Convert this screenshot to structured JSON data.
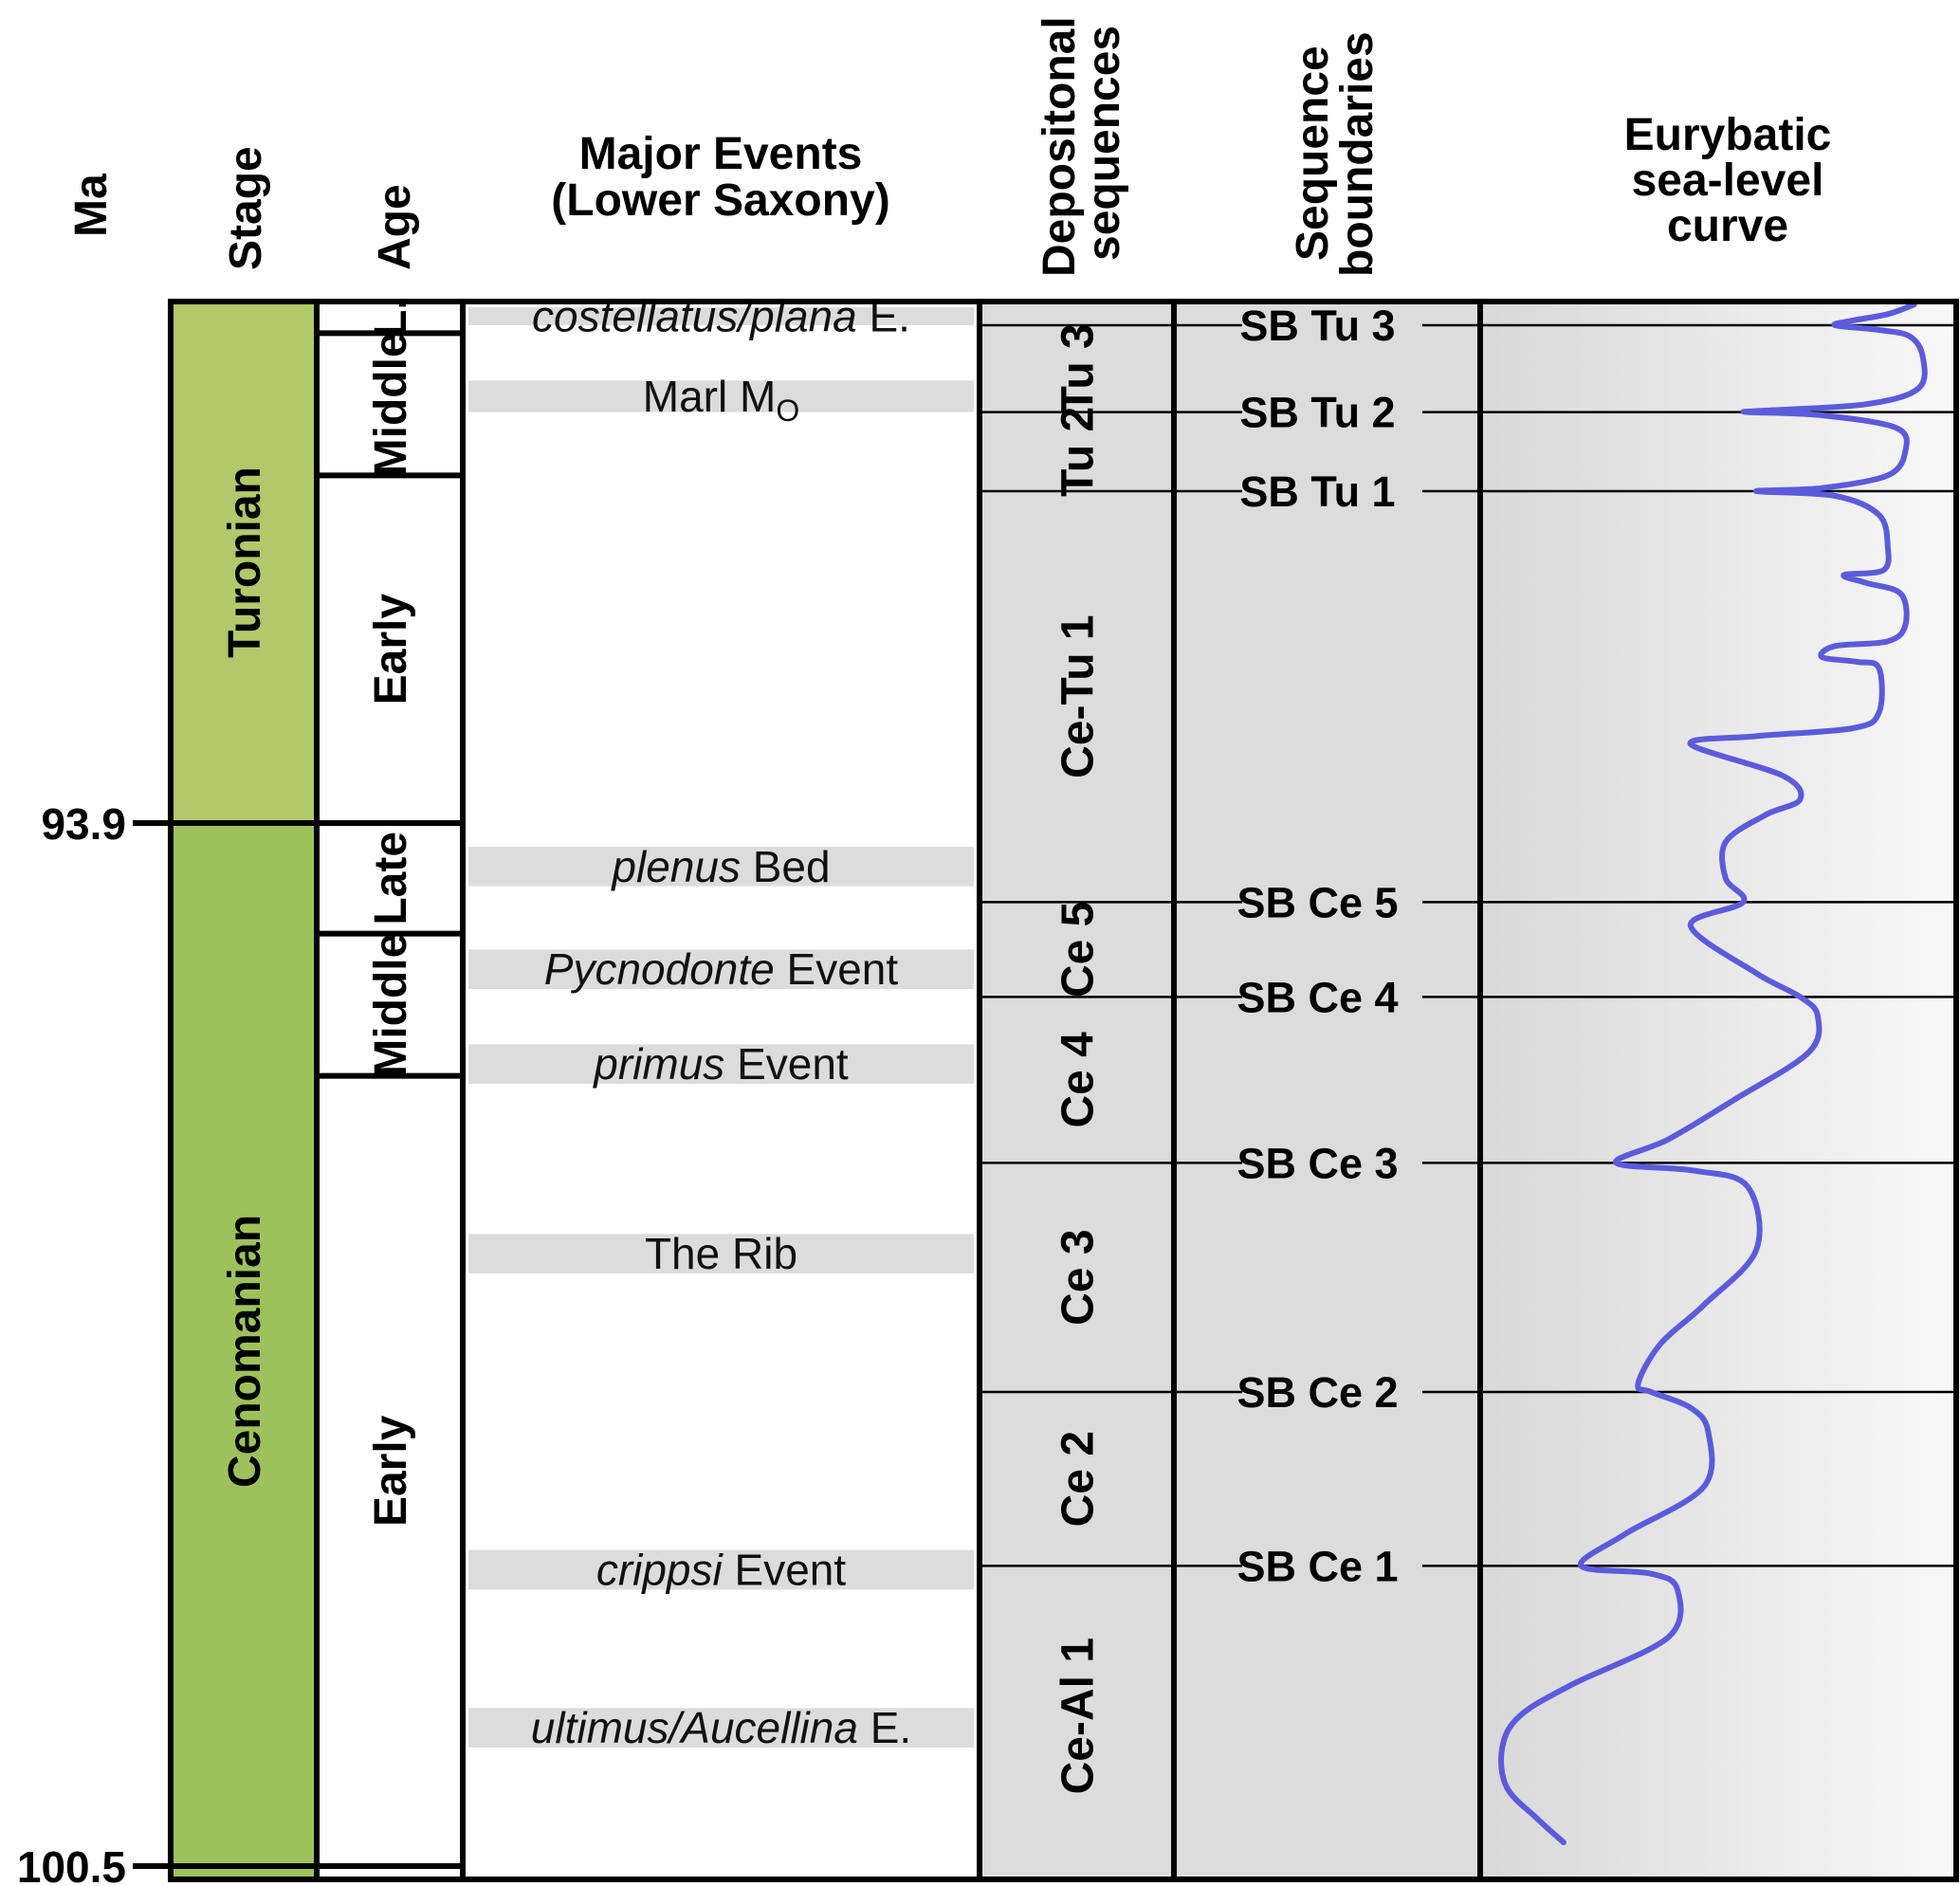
{
  "headers": {
    "ma": "Ma",
    "stage": "Stage",
    "age": "Age",
    "events_line1": "Major Events",
    "events_line2": "(Lower Saxony)",
    "depo_line1": "Depositonal",
    "depo_line2": "sequences",
    "sb_line1": "Sequence",
    "sb_line2": "boundaries",
    "curve_line1": "Eurybatic",
    "curve_line2": "sea-level",
    "curve_line3": "curve"
  },
  "ma_ticks": [
    {
      "label": "93.9",
      "value": 93.9
    },
    {
      "label": "100.5",
      "value": 100.5
    }
  ],
  "stages": [
    {
      "label": "Turonian",
      "top_ma": 90.6,
      "bottom_ma": 93.9,
      "color": "#b0c96a"
    },
    {
      "label": "Cenomanian",
      "top_ma": 93.9,
      "bottom_ma": 100.5,
      "color": "#9dc25c"
    }
  ],
  "ages": [
    {
      "label": "L.",
      "top_ma": 90.6,
      "bottom_ma": 90.8
    },
    {
      "label": "Middle",
      "top_ma": 90.8,
      "bottom_ma": 91.7
    },
    {
      "label": "Early",
      "top_ma": 91.7,
      "bottom_ma": 93.9
    },
    {
      "label": "Late",
      "top_ma": 93.9,
      "bottom_ma": 94.6
    },
    {
      "label": "Middle",
      "top_ma": 94.6,
      "bottom_ma": 95.5
    },
    {
      "label": "Early",
      "top_ma": 95.5,
      "bottom_ma": 100.5
    }
  ],
  "events": [
    {
      "italic": "costellatus/plana",
      "plain": " E.",
      "top_ma": 90.6,
      "bottom_ma": 90.75
    },
    {
      "italic": "",
      "plain": "Marl M",
      "sub": "O",
      "top_ma": 91.1,
      "bottom_ma": 91.3
    },
    {
      "italic": "plenus",
      "plain": " Bed",
      "top_ma": 94.05,
      "bottom_ma": 94.3
    },
    {
      "italic": "Pycnodonte",
      "plain": " Event",
      "top_ma": 94.7,
      "bottom_ma": 94.95
    },
    {
      "italic": "primus",
      "plain": " Event",
      "top_ma": 95.3,
      "bottom_ma": 95.55
    },
    {
      "italic": "",
      "plain": "The Rib",
      "top_ma": 96.5,
      "bottom_ma": 96.75
    },
    {
      "italic": "crippsi",
      "plain": " Event",
      "top_ma": 98.5,
      "bottom_ma": 98.75
    },
    {
      "italic": "ultimus/Aucellina",
      "plain": " E.",
      "top_ma": 99.5,
      "bottom_ma": 99.75
    }
  ],
  "sequences": [
    {
      "label": "Tu 3",
      "top_ma": 90.75,
      "bottom_ma": 91.3
    },
    {
      "label": "Tu 2",
      "top_ma": 91.3,
      "bottom_ma": 91.8
    },
    {
      "label": "Ce-Tu 1",
      "top_ma": 91.8,
      "bottom_ma": 94.4
    },
    {
      "label": "Ce 5",
      "top_ma": 94.4,
      "bottom_ma": 95.0
    },
    {
      "label": "Ce 4",
      "top_ma": 95.0,
      "bottom_ma": 96.05
    },
    {
      "label": "Ce 3",
      "top_ma": 96.05,
      "bottom_ma": 97.5
    },
    {
      "label": "Ce 2",
      "top_ma": 97.5,
      "bottom_ma": 98.6
    },
    {
      "label": "Ce-Al 1",
      "top_ma": 98.6,
      "bottom_ma": 100.5
    }
  ],
  "boundaries": [
    {
      "label": "SB Tu 3",
      "ma": 90.75
    },
    {
      "label": "SB Tu 2",
      "ma": 91.3
    },
    {
      "label": "SB Tu 1",
      "ma": 91.8
    },
    {
      "label": "SB Ce 5",
      "ma": 94.4
    },
    {
      "label": "SB Ce 4",
      "ma": 95.0
    },
    {
      "label": "SB Ce 3",
      "ma": 96.05
    },
    {
      "label": "SB Ce 2",
      "ma": 97.5
    },
    {
      "label": "SB Ce 1",
      "ma": 98.6
    }
  ],
  "chart_data": {
    "type": "line",
    "title": "",
    "xlabel": "",
    "ylabel": "Ma",
    "ylim": [
      90.6,
      100.5
    ],
    "xlim": [
      0,
      1
    ],
    "series": [
      {
        "color": "#5b5bdc",
        "points": [
          [
            0.96,
            90.62
          ],
          [
            0.9,
            90.68
          ],
          [
            0.82,
            90.72
          ],
          [
            0.78,
            90.75
          ],
          [
            0.88,
            90.78
          ],
          [
            0.95,
            90.82
          ],
          [
            0.98,
            90.95
          ],
          [
            0.97,
            91.15
          ],
          [
            0.85,
            91.25
          ],
          [
            0.62,
            91.29
          ],
          [
            0.58,
            91.3
          ],
          [
            0.75,
            91.32
          ],
          [
            0.92,
            91.4
          ],
          [
            0.94,
            91.55
          ],
          [
            0.9,
            91.7
          ],
          [
            0.75,
            91.78
          ],
          [
            0.6,
            91.8
          ],
          [
            0.78,
            91.83
          ],
          [
            0.88,
            91.95
          ],
          [
            0.9,
            92.15
          ],
          [
            0.89,
            92.3
          ],
          [
            0.8,
            92.33
          ],
          [
            0.85,
            92.38
          ],
          [
            0.93,
            92.45
          ],
          [
            0.94,
            92.65
          ],
          [
            0.9,
            92.75
          ],
          [
            0.78,
            92.78
          ],
          [
            0.75,
            92.85
          ],
          [
            0.83,
            92.88
          ],
          [
            0.88,
            92.92
          ],
          [
            0.88,
            93.2
          ],
          [
            0.82,
            93.3
          ],
          [
            0.6,
            93.35
          ],
          [
            0.45,
            93.4
          ],
          [
            0.66,
            93.6
          ],
          [
            0.7,
            93.75
          ],
          [
            0.62,
            93.85
          ],
          [
            0.53,
            94.02
          ],
          [
            0.53,
            94.25
          ],
          [
            0.57,
            94.4
          ],
          [
            0.45,
            94.55
          ],
          [
            0.6,
            94.85
          ],
          [
            0.7,
            95.0
          ],
          [
            0.74,
            95.12
          ],
          [
            0.72,
            95.35
          ],
          [
            0.55,
            95.65
          ],
          [
            0.4,
            95.9
          ],
          [
            0.28,
            96.05
          ],
          [
            0.46,
            96.1
          ],
          [
            0.58,
            96.2
          ],
          [
            0.6,
            96.6
          ],
          [
            0.48,
            96.95
          ],
          [
            0.38,
            97.2
          ],
          [
            0.33,
            97.45
          ],
          [
            0.36,
            97.5
          ],
          [
            0.45,
            97.6
          ],
          [
            0.49,
            97.75
          ],
          [
            0.48,
            98.1
          ],
          [
            0.3,
            98.4
          ],
          [
            0.2,
            98.6
          ],
          [
            0.36,
            98.65
          ],
          [
            0.42,
            98.75
          ],
          [
            0.4,
            99.05
          ],
          [
            0.18,
            99.35
          ],
          [
            0.06,
            99.55
          ],
          [
            0.02,
            99.75
          ],
          [
            0.03,
            100.0
          ],
          [
            0.1,
            100.2
          ],
          [
            0.16,
            100.35
          ]
        ]
      }
    ]
  }
}
